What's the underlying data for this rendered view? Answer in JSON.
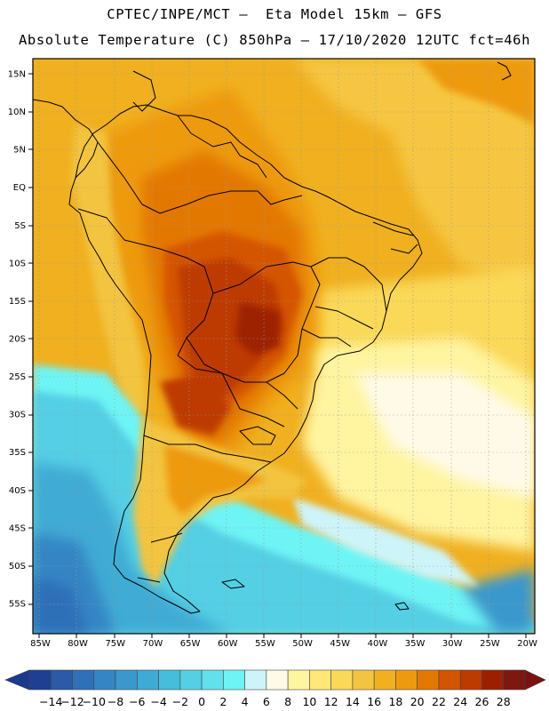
{
  "header": {
    "line1": "CPTEC/INPE/MCT –  Eta Model 15km – GFS",
    "line2": "Absolute Temperature (C) 850hPa – 17/10/2020 12UTC fct=46h"
  },
  "map": {
    "lon_range": [
      -86,
      -19
    ],
    "lat_range": [
      -59,
      17
    ],
    "lat_ticks": [
      {
        "value": 15,
        "label": "15N"
      },
      {
        "value": 10,
        "label": "10N"
      },
      {
        "value": 5,
        "label": "5N"
      },
      {
        "value": 0,
        "label": "EQ"
      },
      {
        "value": -5,
        "label": "5S"
      },
      {
        "value": -10,
        "label": "10S"
      },
      {
        "value": -15,
        "label": "15S"
      },
      {
        "value": -20,
        "label": "20S"
      },
      {
        "value": -25,
        "label": "25S"
      },
      {
        "value": -30,
        "label": "30S"
      },
      {
        "value": -35,
        "label": "35S"
      },
      {
        "value": -40,
        "label": "40S"
      },
      {
        "value": -45,
        "label": "45S"
      },
      {
        "value": -50,
        "label": "50S"
      },
      {
        "value": -55,
        "label": "55S"
      }
    ],
    "lon_ticks": [
      {
        "value": -85,
        "label": "85W"
      },
      {
        "value": -80,
        "label": "80W"
      },
      {
        "value": -75,
        "label": "75W"
      },
      {
        "value": -70,
        "label": "70W"
      },
      {
        "value": -65,
        "label": "65W"
      },
      {
        "value": -60,
        "label": "60W"
      },
      {
        "value": -55,
        "label": "55W"
      },
      {
        "value": -50,
        "label": "50W"
      },
      {
        "value": -45,
        "label": "45W"
      },
      {
        "value": -40,
        "label": "40W"
      },
      {
        "value": -35,
        "label": "35W"
      },
      {
        "value": -30,
        "label": "30W"
      },
      {
        "value": -25,
        "label": "25W"
      },
      {
        "value": -20,
        "label": "20W"
      }
    ]
  },
  "colorbar": {
    "labels": [
      "-14",
      "-12",
      "-10",
      "-8",
      "-6",
      "-4",
      "-2",
      "0",
      "2",
      "4",
      "6",
      "8",
      "10",
      "12",
      "14",
      "16",
      "18",
      "20",
      "22",
      "24",
      "26",
      "28"
    ],
    "under_color": "#1b3a8c",
    "over_color": "#7a1010",
    "colors": [
      "#1f3f94",
      "#2a5aa8",
      "#2f70b8",
      "#3585c4",
      "#3a98cc",
      "#3fabd4",
      "#47bddc",
      "#55cfe4",
      "#62e0ec",
      "#6ef4f4",
      "#cdf4f8",
      "#fffae8",
      "#fff4a0",
      "#ffe878",
      "#fad858",
      "#f3c440",
      "#f0b020",
      "#ee9a10",
      "#e37800",
      "#d45500",
      "#bd3a00",
      "#9c2000",
      "#7d1810"
    ]
  }
}
